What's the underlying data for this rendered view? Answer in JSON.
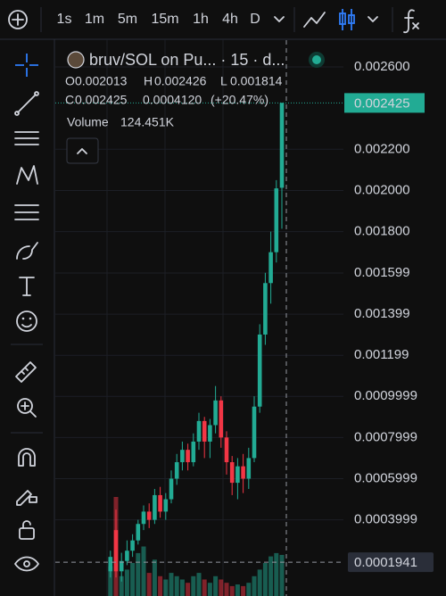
{
  "toolbar": {
    "intervals": [
      "1s",
      "1m",
      "5m",
      "15m",
      "1h",
      "4h",
      "D"
    ],
    "active": 3
  },
  "legend": {
    "symbol": "bruv/SOL on Pu... · 15 · d...",
    "letters": [
      "O",
      "H",
      "L",
      "C"
    ],
    "change": "0.0004120",
    "change_percent": "(+20.47%)",
    "volume_title": "Volume",
    "volume_value": "124.451K"
  },
  "chart": {
    "type": "candlestick",
    "up_color": "#22ab94",
    "down_color": "#f23645",
    "grid": true,
    "ylim": [
      3e-05,
      0.00273
    ],
    "yticks": [
      {
        "value": 0.0026,
        "label": "0.002600"
      },
      {
        "value": 0.0022,
        "label": "0.002200"
      },
      {
        "value": 0.002,
        "label": "0.002000"
      },
      {
        "value": 0.0018,
        "label": "0.001800"
      },
      0.001599,
      0.001399,
      0.001199,
      0.0009999,
      0.0007999,
      0.0005999,
      0.0003999
    ],
    "crosshair_price": 0.0001941,
    "volume_lim": [
      0,
      600
    ],
    "candles": [
      {
        "open": 0.00015,
        "high": 0.00025,
        "low": 0.00012,
        "close": 0.00022
      },
      {
        "open": 0.00035,
        "high": 0.00045,
        "low": 0.00012,
        "close": 0.00015
      },
      {
        "open": 0.00015,
        "high": 0.00024,
        "low": 0.0001,
        "close": 0.0002
      },
      {
        "open": 0.0002,
        "high": 0.0003,
        "low": 0.00018,
        "close": 0.00025
      },
      {
        "open": 0.00025,
        "high": 0.00033,
        "low": 0.00022,
        "close": 0.0003
      },
      {
        "open": 0.0003,
        "high": 0.0004,
        "low": 0.00028,
        "close": 0.00038
      },
      {
        "open": 0.00038,
        "high": 0.00047,
        "low": 0.00035,
        "close": 0.00044
      },
      {
        "open": 0.00044,
        "high": 0.00048,
        "low": 0.00036,
        "close": 0.0004
      },
      {
        "open": 0.0004,
        "high": 0.00055,
        "low": 0.00038,
        "close": 0.00052
      },
      {
        "open": 0.00052,
        "high": 0.00056,
        "low": 0.00041,
        "close": 0.00044
      },
      {
        "open": 0.00044,
        "high": 0.00053,
        "low": 0.0004,
        "close": 0.0005
      },
      {
        "open": 0.0005,
        "high": 0.00064,
        "low": 0.00048,
        "close": 0.0006
      },
      {
        "open": 0.0006,
        "high": 0.00072,
        "low": 0.00057,
        "close": 0.00068
      },
      {
        "open": 0.00068,
        "high": 0.00078,
        "low": 0.00064,
        "close": 0.00074
      },
      {
        "open": 0.00074,
        "high": 0.00077,
        "low": 0.00064,
        "close": 0.00068
      },
      {
        "open": 0.00068,
        "high": 0.00082,
        "low": 0.00066,
        "close": 0.00078
      },
      {
        "open": 0.00078,
        "high": 0.00092,
        "low": 0.00074,
        "close": 0.00088
      },
      {
        "open": 0.00088,
        "high": 0.0009,
        "low": 0.0007,
        "close": 0.00078
      },
      {
        "open": 0.00078,
        "high": 0.00089,
        "low": 0.0007,
        "close": 0.00086
      },
      {
        "open": 0.00086,
        "high": 0.00105,
        "low": 0.00082,
        "close": 0.00098
      },
      {
        "open": 0.00098,
        "high": 0.001,
        "low": 0.00075,
        "close": 0.0008
      },
      {
        "open": 0.0008,
        "high": 0.00083,
        "low": 0.00062,
        "close": 0.00068
      },
      {
        "open": 0.00068,
        "high": 0.00071,
        "low": 0.00052,
        "close": 0.00058
      },
      {
        "open": 0.00058,
        "high": 0.0007,
        "low": 0.0005,
        "close": 0.00066
      },
      {
        "open": 0.00066,
        "high": 0.00072,
        "low": 0.00053,
        "close": 0.0006
      },
      {
        "open": 0.0006,
        "high": 0.00075,
        "low": 0.00055,
        "close": 0.0007
      },
      {
        "open": 0.0007,
        "high": 0.001,
        "low": 0.00068,
        "close": 0.00095
      },
      {
        "open": 0.00095,
        "high": 0.00135,
        "low": 0.00092,
        "close": 0.0013
      },
      {
        "open": 0.0013,
        "high": 0.0016,
        "low": 0.00125,
        "close": 0.00155
      },
      {
        "open": 0.00155,
        "high": 0.0018,
        "low": 0.00145,
        "close": 0.0017
      },
      {
        "open": 0.0017,
        "high": 0.00205,
        "low": 0.00165,
        "close": 0.00201
      },
      {
        "open": 0.002013,
        "high": 0.002426,
        "low": 0.001814,
        "close": 0.002425
      }
    ],
    "volume": [
      90,
      300,
      60,
      80,
      100,
      130,
      150,
      70,
      110,
      60,
      50,
      70,
      60,
      50,
      40,
      60,
      70,
      50,
      40,
      60,
      50,
      40,
      30,
      35,
      30,
      40,
      60,
      80,
      100,
      120,
      130,
      124.451
    ]
  }
}
